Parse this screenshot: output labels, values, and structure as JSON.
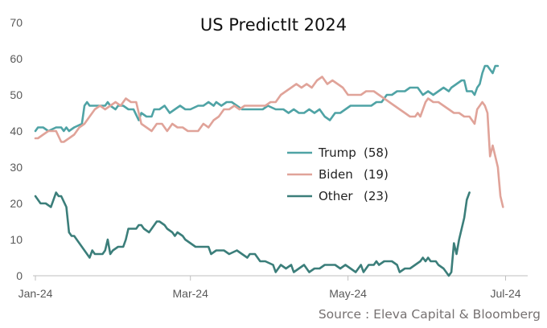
{
  "chart_data": {
    "type": "line",
    "title": "US PredictIt 2024",
    "source": "Source : Eleva Capital & Bloomberg",
    "ylim": [
      0,
      70
    ],
    "yticks": [
      "0",
      "10",
      "20",
      "30",
      "40",
      "50",
      "60",
      "70"
    ],
    "xlim": [
      0,
      189
    ],
    "xticks": [
      {
        "label": "Jan-24",
        "x": 0
      },
      {
        "label": "Mar-24",
        "x": 60
      },
      {
        "label": "May-24",
        "x": 121
      },
      {
        "label": "Jul-24",
        "x": 182
      }
    ],
    "grid": false,
    "legend_position": "center-right",
    "series": [
      {
        "name": "Trump",
        "legend_label": "Trump",
        "legend_value": "(58)",
        "color": "#4FA3A5",
        "points": [
          [
            0,
            40
          ],
          [
            1,
            41
          ],
          [
            3,
            41
          ],
          [
            5,
            40
          ],
          [
            8,
            41
          ],
          [
            10,
            41
          ],
          [
            11,
            40
          ],
          [
            12,
            41
          ],
          [
            13,
            40
          ],
          [
            15,
            41
          ],
          [
            18,
            42
          ],
          [
            19,
            47
          ],
          [
            20,
            48
          ],
          [
            21,
            47
          ],
          [
            25,
            47
          ],
          [
            27,
            47
          ],
          [
            28,
            48
          ],
          [
            29,
            47
          ],
          [
            31,
            46
          ],
          [
            32,
            47
          ],
          [
            34,
            47
          ],
          [
            36,
            46
          ],
          [
            38,
            46
          ],
          [
            40,
            43
          ],
          [
            41,
            45
          ],
          [
            43,
            44
          ],
          [
            45,
            44
          ],
          [
            46,
            46
          ],
          [
            48,
            46
          ],
          [
            50,
            47
          ],
          [
            52,
            45
          ],
          [
            54,
            46
          ],
          [
            56,
            47
          ],
          [
            58,
            46
          ],
          [
            60,
            46
          ],
          [
            63,
            47
          ],
          [
            65,
            47
          ],
          [
            67,
            48
          ],
          [
            69,
            47
          ],
          [
            70,
            48
          ],
          [
            72,
            47
          ],
          [
            74,
            48
          ],
          [
            76,
            48
          ],
          [
            78,
            47
          ],
          [
            80,
            46
          ],
          [
            82,
            46
          ],
          [
            85,
            46
          ],
          [
            88,
            46
          ],
          [
            90,
            47
          ],
          [
            93,
            46
          ],
          [
            96,
            46
          ],
          [
            98,
            45
          ],
          [
            100,
            46
          ],
          [
            102,
            45
          ],
          [
            104,
            45
          ],
          [
            106,
            46
          ],
          [
            108,
            45
          ],
          [
            110,
            46
          ],
          [
            112,
            44
          ],
          [
            114,
            43
          ],
          [
            116,
            45
          ],
          [
            118,
            45
          ],
          [
            120,
            46
          ],
          [
            122,
            47
          ],
          [
            124,
            47
          ],
          [
            127,
            47
          ],
          [
            130,
            47
          ],
          [
            132,
            48
          ],
          [
            134,
            48
          ],
          [
            136,
            50
          ],
          [
            138,
            50
          ],
          [
            140,
            51
          ],
          [
            143,
            51
          ],
          [
            145,
            52
          ],
          [
            148,
            52
          ],
          [
            150,
            50
          ],
          [
            152,
            51
          ],
          [
            154,
            50
          ],
          [
            156,
            51
          ],
          [
            158,
            52
          ],
          [
            160,
            51
          ],
          [
            161,
            52
          ],
          [
            163,
            53
          ],
          [
            165,
            54
          ],
          [
            166,
            54
          ],
          [
            167,
            51
          ],
          [
            169,
            51
          ],
          [
            170,
            50
          ],
          [
            171,
            52
          ],
          [
            172,
            53
          ],
          [
            173,
            56
          ],
          [
            174,
            58
          ],
          [
            175,
            58
          ],
          [
            176,
            57
          ],
          [
            177,
            56
          ],
          [
            178,
            58
          ],
          [
            179,
            58
          ]
        ]
      },
      {
        "name": "Biden",
        "legend_label": "Biden",
        "legend_value": "(19)",
        "color": "#E0A399",
        "points": [
          [
            0,
            38
          ],
          [
            1,
            38
          ],
          [
            3,
            39
          ],
          [
            5,
            40
          ],
          [
            8,
            40
          ],
          [
            10,
            37
          ],
          [
            11,
            37
          ],
          [
            13,
            38
          ],
          [
            15,
            39
          ],
          [
            17,
            41
          ],
          [
            19,
            42
          ],
          [
            21,
            44
          ],
          [
            23,
            46
          ],
          [
            25,
            47
          ],
          [
            27,
            46
          ],
          [
            29,
            47
          ],
          [
            31,
            48
          ],
          [
            33,
            47
          ],
          [
            35,
            49
          ],
          [
            37,
            48
          ],
          [
            39,
            48
          ],
          [
            41,
            42
          ],
          [
            43,
            41
          ],
          [
            45,
            40
          ],
          [
            47,
            42
          ],
          [
            49,
            42
          ],
          [
            51,
            40
          ],
          [
            53,
            42
          ],
          [
            55,
            41
          ],
          [
            57,
            41
          ],
          [
            59,
            40
          ],
          [
            61,
            40
          ],
          [
            63,
            40
          ],
          [
            65,
            42
          ],
          [
            67,
            41
          ],
          [
            69,
            43
          ],
          [
            71,
            44
          ],
          [
            73,
            46
          ],
          [
            75,
            46
          ],
          [
            77,
            47
          ],
          [
            79,
            46
          ],
          [
            81,
            47
          ],
          [
            83,
            47
          ],
          [
            85,
            47
          ],
          [
            87,
            47
          ],
          [
            89,
            47
          ],
          [
            91,
            48
          ],
          [
            93,
            48
          ],
          [
            95,
            50
          ],
          [
            97,
            51
          ],
          [
            99,
            52
          ],
          [
            101,
            53
          ],
          [
            103,
            52
          ],
          [
            105,
            53
          ],
          [
            107,
            52
          ],
          [
            109,
            54
          ],
          [
            111,
            55
          ],
          [
            113,
            53
          ],
          [
            115,
            54
          ],
          [
            117,
            53
          ],
          [
            119,
            52
          ],
          [
            121,
            50
          ],
          [
            123,
            50
          ],
          [
            126,
            50
          ],
          [
            128,
            51
          ],
          [
            131,
            51
          ],
          [
            133,
            50
          ],
          [
            135,
            49
          ],
          [
            137,
            48
          ],
          [
            139,
            47
          ],
          [
            141,
            46
          ],
          [
            143,
            45
          ],
          [
            145,
            44
          ],
          [
            147,
            44
          ],
          [
            148,
            45
          ],
          [
            149,
            44
          ],
          [
            151,
            48
          ],
          [
            152,
            49
          ],
          [
            154,
            48
          ],
          [
            156,
            48
          ],
          [
            158,
            47
          ],
          [
            160,
            46
          ],
          [
            162,
            45
          ],
          [
            164,
            45
          ],
          [
            166,
            44
          ],
          [
            168,
            44
          ],
          [
            169,
            43
          ],
          [
            170,
            42
          ],
          [
            171,
            46
          ],
          [
            172,
            47
          ],
          [
            173,
            48
          ],
          [
            174,
            47
          ],
          [
            175,
            45
          ],
          [
            176,
            33
          ],
          [
            177,
            36
          ],
          [
            178,
            33
          ],
          [
            179,
            30
          ],
          [
            180,
            22
          ],
          [
            181,
            19
          ]
        ]
      },
      {
        "name": "Other",
        "legend_label": "Other",
        "legend_value": "(23)",
        "color": "#3B7E7A",
        "points": [
          [
            0,
            22
          ],
          [
            1,
            21
          ],
          [
            2,
            20
          ],
          [
            4,
            20
          ],
          [
            6,
            19
          ],
          [
            8,
            23
          ],
          [
            9,
            22
          ],
          [
            10,
            22
          ],
          [
            12,
            19
          ],
          [
            13,
            12
          ],
          [
            14,
            11
          ],
          [
            15,
            11
          ],
          [
            17,
            9
          ],
          [
            19,
            7
          ],
          [
            20,
            6
          ],
          [
            21,
            5
          ],
          [
            22,
            7
          ],
          [
            23,
            6
          ],
          [
            26,
            6
          ],
          [
            27,
            7
          ],
          [
            28,
            10
          ],
          [
            29,
            6
          ],
          [
            30,
            7
          ],
          [
            32,
            8
          ],
          [
            34,
            8
          ],
          [
            35,
            10
          ],
          [
            36,
            13
          ],
          [
            39,
            13
          ],
          [
            40,
            14
          ],
          [
            41,
            14
          ],
          [
            42,
            13
          ],
          [
            44,
            12
          ],
          [
            46,
            14
          ],
          [
            47,
            15
          ],
          [
            48,
            15
          ],
          [
            50,
            14
          ],
          [
            51,
            13
          ],
          [
            53,
            12
          ],
          [
            54,
            11
          ],
          [
            55,
            12
          ],
          [
            57,
            11
          ],
          [
            58,
            10
          ],
          [
            60,
            9
          ],
          [
            62,
            8
          ],
          [
            65,
            8
          ],
          [
            67,
            8
          ],
          [
            68,
            6
          ],
          [
            70,
            7
          ],
          [
            73,
            7
          ],
          [
            75,
            6
          ],
          [
            78,
            7
          ],
          [
            80,
            6
          ],
          [
            82,
            5
          ],
          [
            83,
            6
          ],
          [
            85,
            6
          ],
          [
            87,
            4
          ],
          [
            89,
            4
          ],
          [
            92,
            3
          ],
          [
            93,
            1
          ],
          [
            95,
            3
          ],
          [
            97,
            2
          ],
          [
            99,
            3
          ],
          [
            100,
            1
          ],
          [
            102,
            2
          ],
          [
            104,
            3
          ],
          [
            106,
            1
          ],
          [
            108,
            2
          ],
          [
            110,
            2
          ],
          [
            112,
            3
          ],
          [
            114,
            3
          ],
          [
            116,
            3
          ],
          [
            118,
            2
          ],
          [
            120,
            3
          ],
          [
            122,
            2
          ],
          [
            124,
            1
          ],
          [
            126,
            3
          ],
          [
            127,
            1
          ],
          [
            129,
            3
          ],
          [
            131,
            3
          ],
          [
            132,
            4
          ],
          [
            133,
            3
          ],
          [
            135,
            4
          ],
          [
            138,
            4
          ],
          [
            140,
            3
          ],
          [
            141,
            1
          ],
          [
            143,
            2
          ],
          [
            145,
            2
          ],
          [
            147,
            3
          ],
          [
            149,
            4
          ],
          [
            150,
            5
          ],
          [
            151,
            4
          ],
          [
            152,
            5
          ],
          [
            153,
            4
          ],
          [
            155,
            4
          ],
          [
            156,
            3
          ],
          [
            158,
            2
          ],
          [
            159,
            1
          ],
          [
            160,
            0
          ],
          [
            161,
            1
          ],
          [
            162,
            9
          ],
          [
            163,
            6
          ],
          [
            164,
            10
          ],
          [
            165,
            13
          ],
          [
            166,
            16
          ],
          [
            167,
            21
          ],
          [
            168,
            23
          ]
        ]
      }
    ]
  }
}
